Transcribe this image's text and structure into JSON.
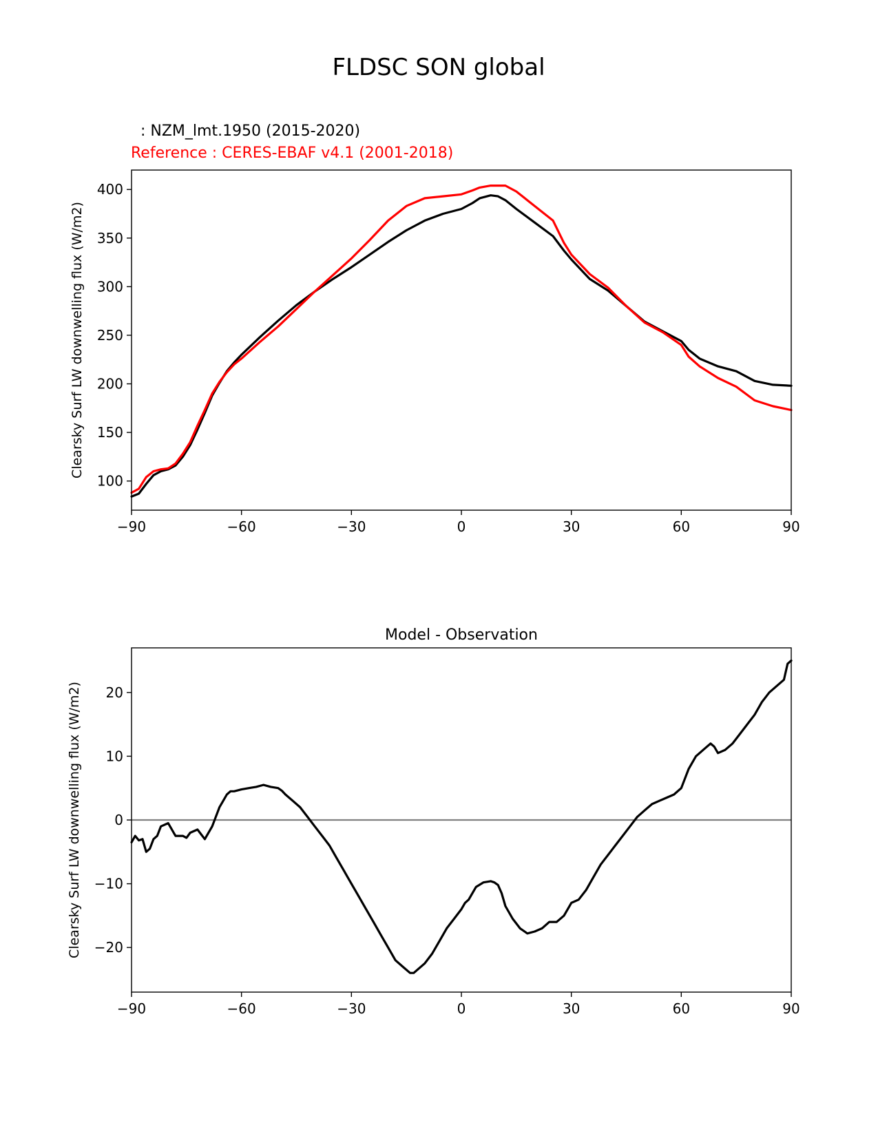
{
  "figure": {
    "title": "FLDSC SON global",
    "model_label": "  : NZM_lmt.1950 (2015-2020)",
    "reference_label": "Reference : CERES-EBAF v4.1 (2001-2018)",
    "colors": {
      "model": "#000000",
      "reference": "#ff0000",
      "zero_line": "#808080"
    }
  },
  "chart_data": [
    {
      "type": "line",
      "title": "",
      "xlabel": "",
      "ylabel": "Clearsky Surf LW downwelling flux (W/m2)",
      "xlim": [
        -90,
        90
      ],
      "ylim": [
        70,
        420
      ],
      "xticks": [
        -90,
        -60,
        -30,
        0,
        30,
        60,
        90
      ],
      "xtick_labels": [
        "−90",
        "−60",
        "−30",
        "0",
        "30",
        "60",
        "90"
      ],
      "yticks": [
        100,
        150,
        200,
        250,
        300,
        350,
        400
      ],
      "ytick_labels": [
        "100",
        "150",
        "200",
        "250",
        "300",
        "350",
        "400"
      ],
      "x": [
        -90,
        -88,
        -86,
        -84,
        -82,
        -80,
        -78,
        -76,
        -74,
        -72,
        -70,
        -68,
        -66,
        -64,
        -62,
        -60,
        -55,
        -50,
        -45,
        -40,
        -35,
        -30,
        -25,
        -20,
        -15,
        -10,
        -5,
        0,
        3,
        5,
        8,
        10,
        12,
        15,
        20,
        25,
        28,
        30,
        35,
        40,
        45,
        50,
        55,
        60,
        62,
        65,
        70,
        75,
        80,
        85,
        90
      ],
      "series": [
        {
          "name": "NZM_lmt.1950 (2015-2020)",
          "color": "#000000",
          "values": [
            84,
            87,
            97,
            106,
            110,
            112,
            116,
            125,
            137,
            153,
            170,
            188,
            201,
            213,
            222,
            230,
            248,
            265,
            281,
            295,
            308,
            320,
            333,
            346,
            358,
            368,
            375,
            380,
            386,
            391,
            394,
            393,
            389,
            380,
            366,
            352,
            337,
            328,
            308,
            296,
            280,
            264,
            254,
            244,
            235,
            226,
            218,
            213,
            203,
            199,
            198
          ]
        },
        {
          "name": "Reference : CERES-EBAF v4.1 (2001-2018)",
          "color": "#ff0000",
          "values": [
            88,
            92,
            104,
            110,
            112,
            113,
            118,
            128,
            140,
            157,
            173,
            190,
            202,
            212,
            220,
            226,
            243,
            259,
            277,
            295,
            312,
            329,
            348,
            368,
            383,
            391,
            393,
            395,
            399,
            402,
            404,
            404,
            404,
            398,
            383,
            368,
            345,
            333,
            313,
            299,
            280,
            263,
            253,
            240,
            228,
            218,
            206,
            197,
            183,
            177,
            173
          ]
        }
      ]
    },
    {
      "type": "line",
      "title": "Model - Observation",
      "xlabel": "",
      "ylabel": "Clearsky Surf LW downwelling flux (W/m2)",
      "xlim": [
        -90,
        90
      ],
      "ylim": [
        -27,
        27
      ],
      "xticks": [
        -90,
        -60,
        -30,
        0,
        30,
        60,
        90
      ],
      "xtick_labels": [
        "−90",
        "−60",
        "−30",
        "0",
        "30",
        "60",
        "90"
      ],
      "yticks": [
        -20,
        -10,
        0,
        10,
        20
      ],
      "ytick_labels": [
        "−20",
        "−10",
        "0",
        "10",
        "20"
      ],
      "zero_line": true,
      "x": [
        -90,
        -89,
        -88,
        -87,
        -86,
        -85,
        -84,
        -83,
        -82,
        -80,
        -78,
        -76,
        -75,
        -74,
        -72,
        -70,
        -68,
        -67,
        -66,
        -65,
        -64,
        -63,
        -62,
        -60,
        -58,
        -56,
        -54,
        -52,
        -50,
        -49,
        -48,
        -46,
        -44,
        -42,
        -40,
        -38,
        -36,
        -34,
        -32,
        -30,
        -28,
        -26,
        -24,
        -22,
        -20,
        -18,
        -16,
        -14,
        -13,
        -12,
        -10,
        -8,
        -6,
        -4,
        -2,
        0,
        1,
        2,
        4,
        6,
        8,
        9,
        10,
        11,
        12,
        14,
        16,
        18,
        20,
        22,
        24,
        26,
        28,
        30,
        32,
        34,
        36,
        38,
        40,
        42,
        44,
        46,
        48,
        50,
        52,
        54,
        56,
        58,
        60,
        62,
        64,
        66,
        68,
        69,
        70,
        72,
        74,
        76,
        78,
        80,
        82,
        84,
        86,
        88,
        89,
        90
      ],
      "series": [
        {
          "name": "Model - Observation",
          "color": "#000000",
          "values": [
            -3.5,
            -2.5,
            -3.2,
            -3.0,
            -5.0,
            -4.5,
            -3.0,
            -2.5,
            -1.0,
            -0.5,
            -2.5,
            -2.5,
            -2.8,
            -2.0,
            -1.5,
            -3.0,
            -1.0,
            0.5,
            2.0,
            3.0,
            4.0,
            4.5,
            4.5,
            4.8,
            5.0,
            5.2,
            5.5,
            5.2,
            5.0,
            4.6,
            4.0,
            3.0,
            2.0,
            0.5,
            -1.0,
            -2.5,
            -4.0,
            -6.0,
            -8.0,
            -10.0,
            -12.0,
            -14.0,
            -16.0,
            -18.0,
            -20.0,
            -22.0,
            -23.0,
            -24.0,
            -24.0,
            -23.5,
            -22.5,
            -21.0,
            -19.0,
            -17.0,
            -15.5,
            -14.0,
            -13.0,
            -12.5,
            -10.5,
            -9.8,
            -9.6,
            -9.8,
            -10.2,
            -11.5,
            -13.5,
            -15.5,
            -17.0,
            -17.8,
            -17.5,
            -17.0,
            -16.0,
            -16.0,
            -15.0,
            -13.0,
            -12.5,
            -11.0,
            -9.0,
            -7.0,
            -5.5,
            -4.0,
            -2.5,
            -1.0,
            0.5,
            1.5,
            2.5,
            3.0,
            3.5,
            4.0,
            5.0,
            8.0,
            10.0,
            11.0,
            12.0,
            11.5,
            10.5,
            11.0,
            12.0,
            13.5,
            15.0,
            16.5,
            18.5,
            20.0,
            21.0,
            22.0,
            24.5,
            25.0
          ]
        }
      ]
    }
  ]
}
